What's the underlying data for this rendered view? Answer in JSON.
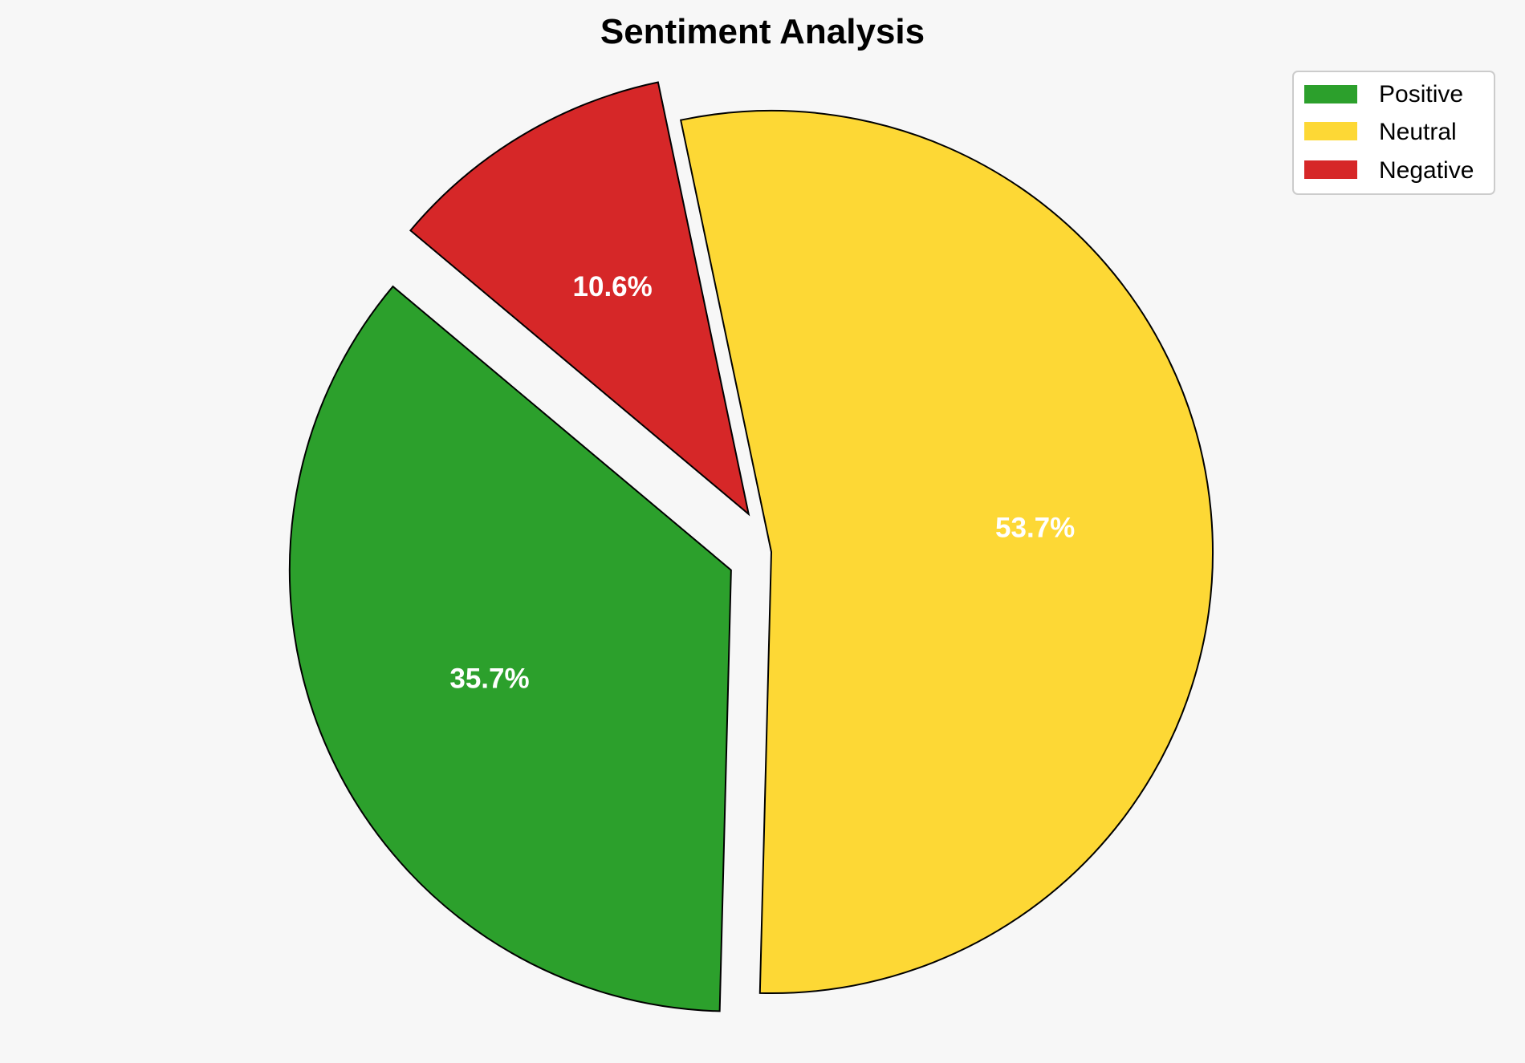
{
  "chart_data": {
    "type": "pie",
    "title": "Sentiment Analysis",
    "categories": [
      "Positive",
      "Neutral",
      "Negative"
    ],
    "values": [
      35.7,
      53.7,
      10.6
    ],
    "value_labels": [
      "35.7%",
      "53.7%",
      "10.6%"
    ],
    "colors": [
      "#2ca02c",
      "#fdd835",
      "#d62728"
    ],
    "exploded": [
      true,
      false,
      true
    ],
    "start_angle_deg": 140,
    "direction": "counterclockwise",
    "edge_color": "#000000",
    "legend_position": "top-right"
  }
}
